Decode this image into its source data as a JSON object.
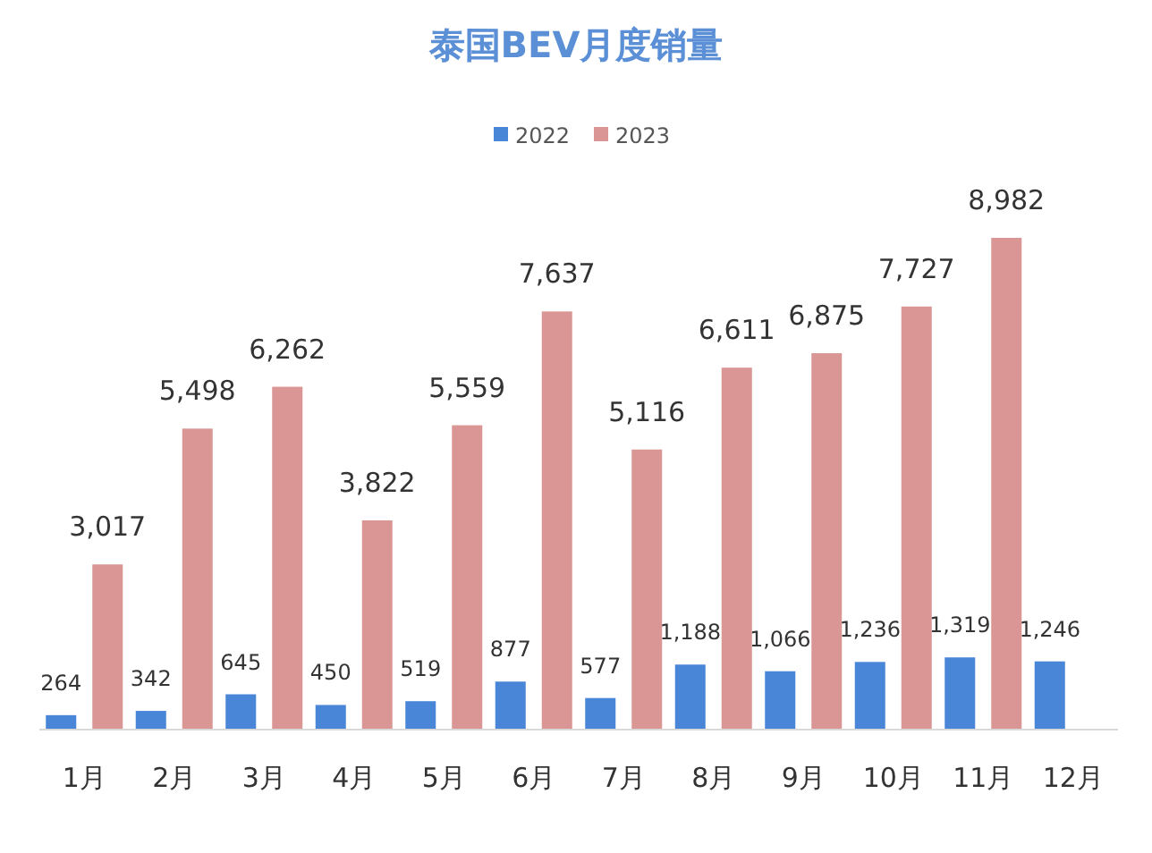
{
  "chart_data": {
    "type": "bar",
    "title": "泰国BEV月度销量",
    "categories": [
      "1月",
      "2月",
      "3月",
      "4月",
      "5月",
      "6月",
      "7月",
      "8月",
      "9月",
      "10月",
      "11月",
      "12月"
    ],
    "series": [
      {
        "name": "2022",
        "color": "#4a86d8",
        "values": [
          264,
          342,
          645,
          450,
          519,
          877,
          577,
          1188,
          1066,
          1236,
          1319,
          1246
        ],
        "value_labels": [
          "264",
          "342",
          "645",
          "450",
          "519",
          "877",
          "577",
          "1,188",
          "1,066",
          "1,236",
          "1,319",
          "1,246"
        ]
      },
      {
        "name": "2023",
        "color": "#d99694",
        "values": [
          3017,
          5498,
          6262,
          3822,
          5559,
          7637,
          5116,
          6611,
          6875,
          7727,
          8982,
          null
        ],
        "value_labels": [
          "3,017",
          "5,498",
          "6,262",
          "3,822",
          "5,559",
          "7,637",
          "5,116",
          "6,611",
          "6,875",
          "7,727",
          "8,982",
          null
        ]
      }
    ],
    "legend": "top"
  }
}
